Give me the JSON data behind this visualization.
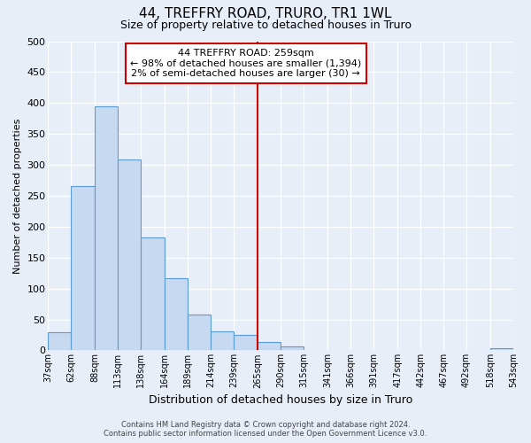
{
  "title": "44, TREFFRY ROAD, TRURO, TR1 1WL",
  "subtitle": "Size of property relative to detached houses in Truro",
  "xlabel": "Distribution of detached houses by size in Truro",
  "ylabel": "Number of detached properties",
  "footer_line1": "Contains HM Land Registry data © Crown copyright and database right 2024.",
  "footer_line2": "Contains public sector information licensed under the Open Government Licence v3.0.",
  "bin_edges": [
    37,
    62,
    88,
    113,
    138,
    164,
    189,
    214,
    239,
    265,
    290,
    315,
    341,
    366,
    391,
    417,
    442,
    467,
    492,
    518,
    543
  ],
  "bar_heights": [
    29,
    265,
    395,
    308,
    182,
    117,
    58,
    31,
    25,
    14,
    7,
    0,
    0,
    0,
    0,
    0,
    0,
    0,
    0,
    3
  ],
  "bar_color": "#c6d9f0",
  "bar_edge_color": "#5b9bd5",
  "vline_color": "#cc0000",
  "vline_x": 265,
  "annotation_title": "44 TREFFRY ROAD: 259sqm",
  "annotation_line1": "← 98% of detached houses are smaller (1,394)",
  "annotation_line2": "2% of semi-detached houses are larger (30) →",
  "annotation_box_color": "#cc0000",
  "annotation_box_fill": "#ffffff",
  "background_color": "#e8eef8",
  "grid_color": "#ffffff",
  "ylim": [
    0,
    500
  ],
  "yticks": [
    0,
    50,
    100,
    150,
    200,
    250,
    300,
    350,
    400,
    450,
    500
  ],
  "tick_labels": [
    "37sqm",
    "62sqm",
    "88sqm",
    "113sqm",
    "138sqm",
    "164sqm",
    "189sqm",
    "214sqm",
    "239sqm",
    "265sqm",
    "290sqm",
    "315sqm",
    "341sqm",
    "366sqm",
    "391sqm",
    "417sqm",
    "442sqm",
    "467sqm",
    "492sqm",
    "518sqm",
    "543sqm"
  ],
  "title_fontsize": 11,
  "subtitle_fontsize": 9,
  "xlabel_fontsize": 9,
  "ylabel_fontsize": 8,
  "ann_fontsize": 8,
  "xtick_fontsize": 7,
  "ytick_fontsize": 8
}
